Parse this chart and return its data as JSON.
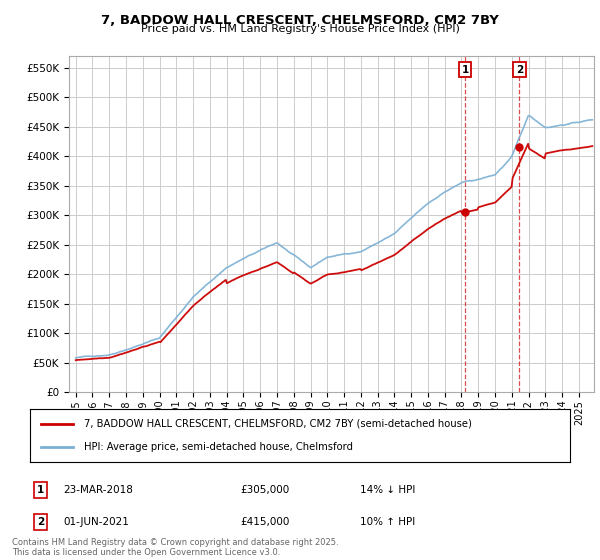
{
  "title": "7, BADDOW HALL CRESCENT, CHELMSFORD, CM2 7BY",
  "subtitle": "Price paid vs. HM Land Registry's House Price Index (HPI)",
  "ylabel_ticks": [
    "£0",
    "£50K",
    "£100K",
    "£150K",
    "£200K",
    "£250K",
    "£300K",
    "£350K",
    "£400K",
    "£450K",
    "£500K",
    "£550K"
  ],
  "ytick_values": [
    0,
    50000,
    100000,
    150000,
    200000,
    250000,
    300000,
    350000,
    400000,
    450000,
    500000,
    550000
  ],
  "ylim": [
    0,
    570000
  ],
  "legend_label_red": "7, BADDOW HALL CRESCENT, CHELMSFORD, CM2 7BY (semi-detached house)",
  "legend_label_blue": "HPI: Average price, semi-detached house, Chelmsford",
  "annotation1_date": "23-MAR-2018",
  "annotation1_price": "£305,000",
  "annotation1_hpi": "14% ↓ HPI",
  "annotation2_date": "01-JUN-2021",
  "annotation2_price": "£415,000",
  "annotation2_hpi": "10% ↑ HPI",
  "footer": "Contains HM Land Registry data © Crown copyright and database right 2025.\nThis data is licensed under the Open Government Licence v3.0.",
  "red_color": "#cc0000",
  "blue_color": "#7aafd4",
  "grid_color": "#cccccc",
  "marker1_x_year": 2018.22,
  "marker1_y": 305000,
  "marker2_x_year": 2021.45,
  "marker2_y": 415000,
  "xlim_left": 1994.6,
  "xlim_right": 2025.9
}
